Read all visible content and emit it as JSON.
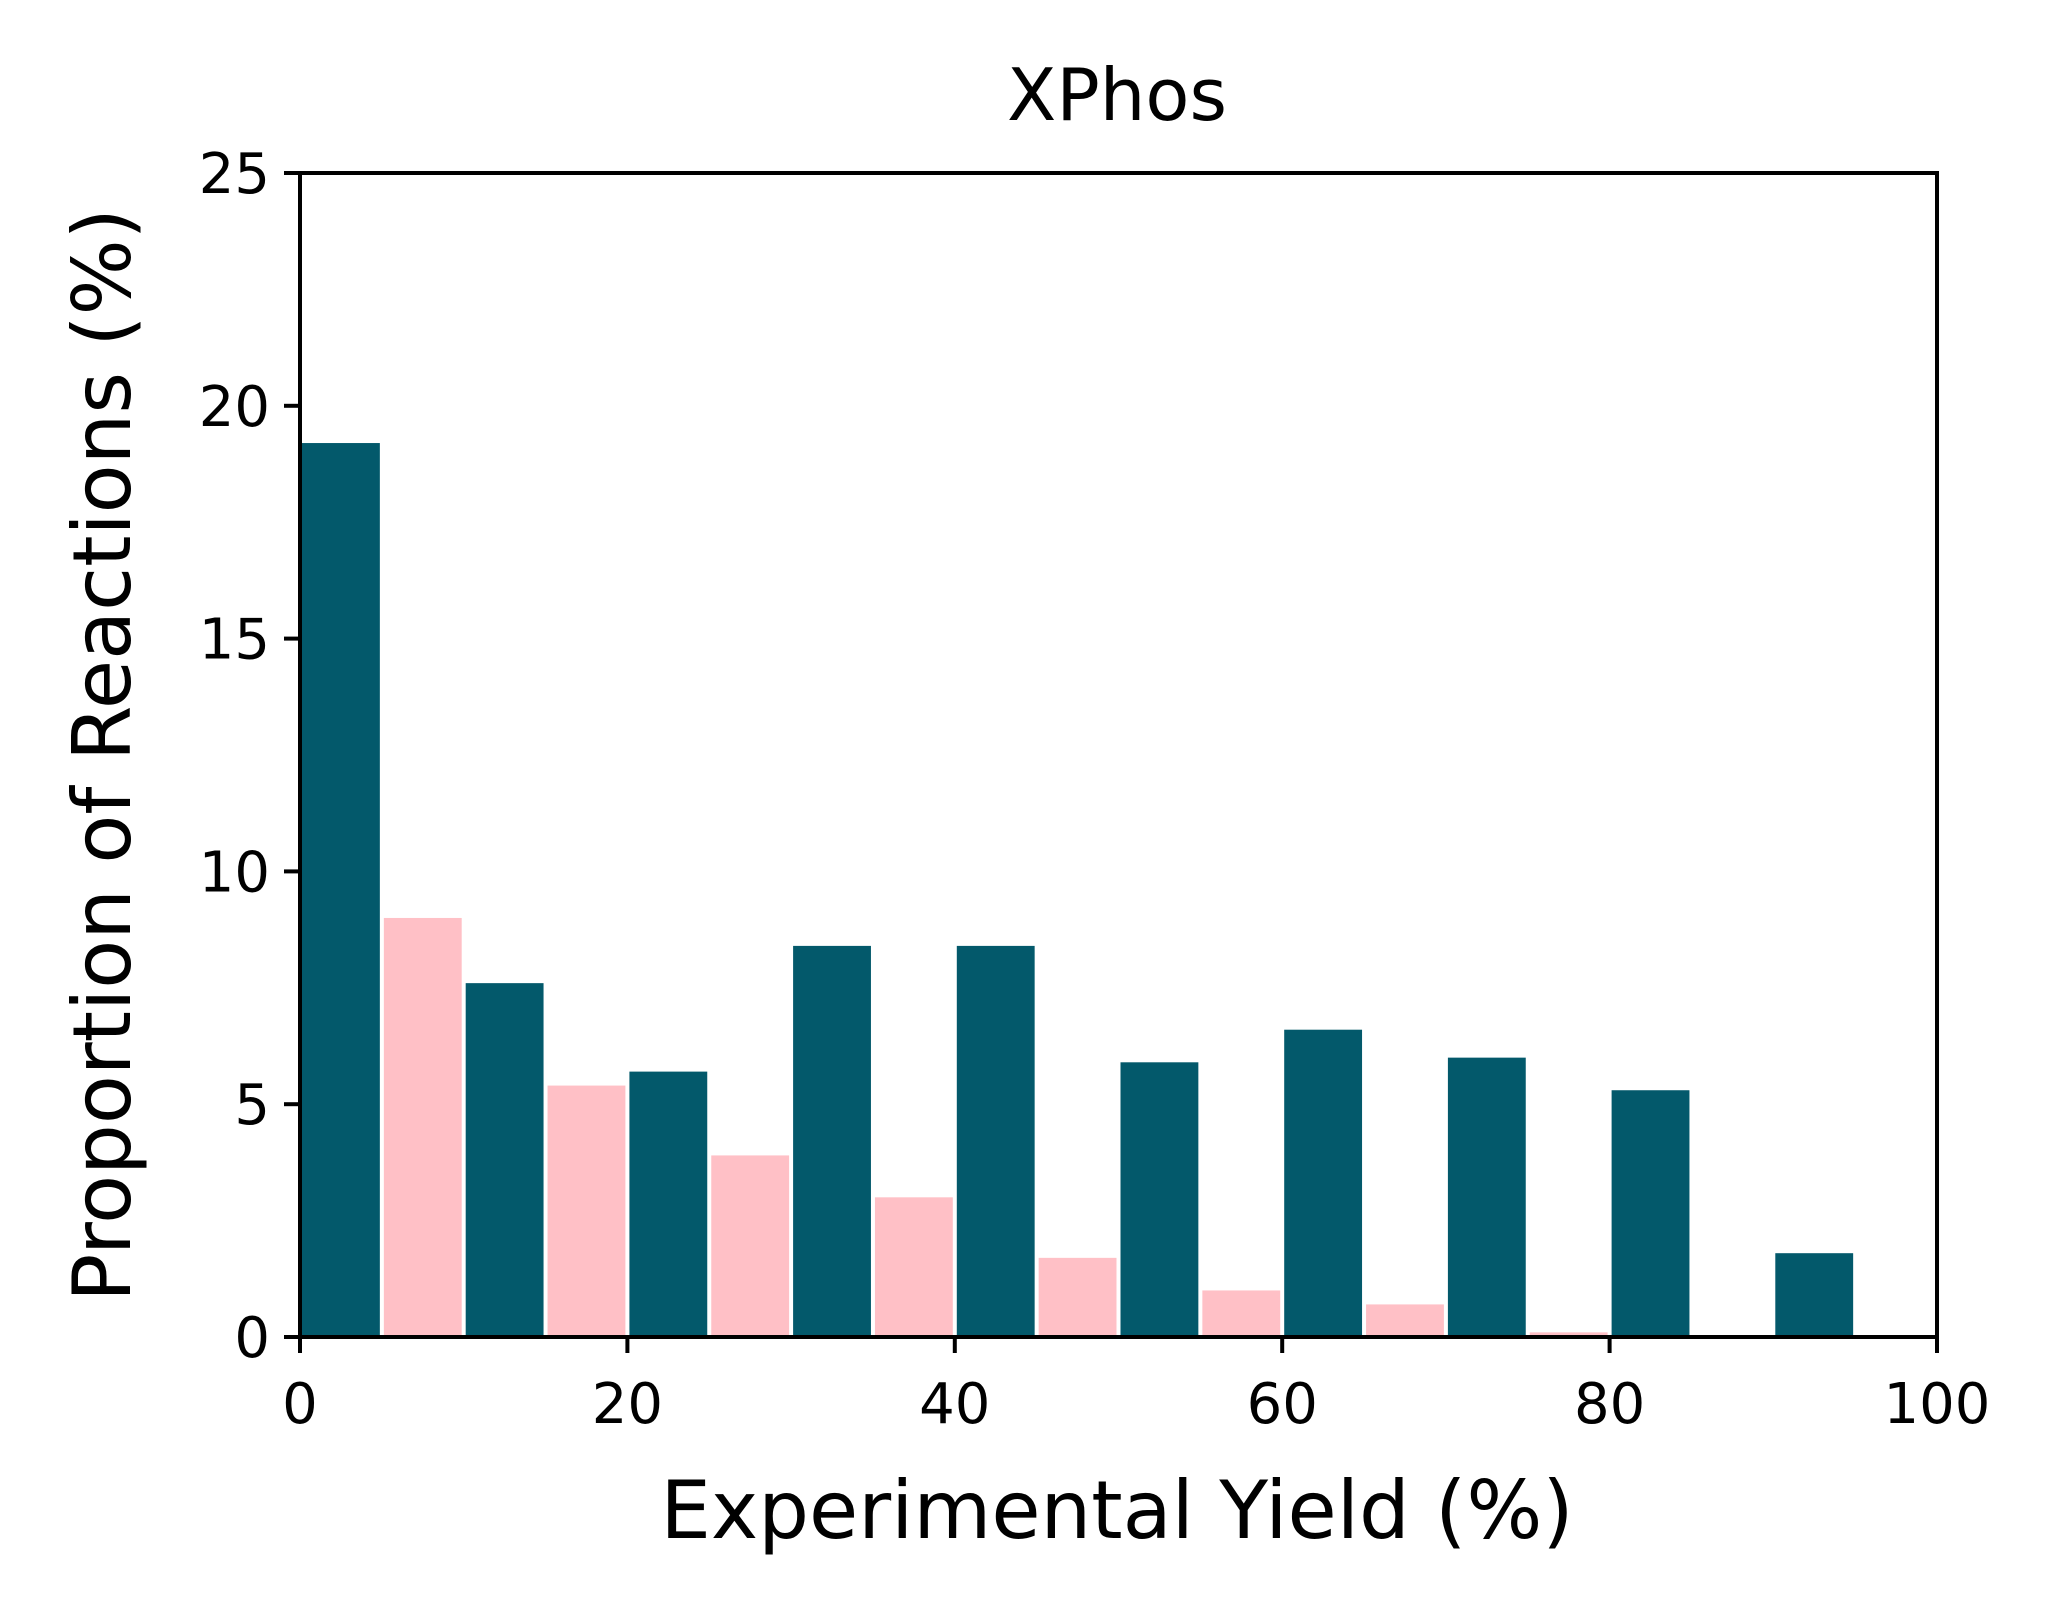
{
  "chart_data": {
    "type": "bar",
    "title": "XPhos",
    "xlabel": "Experimental Yield (%)",
    "ylabel": "Proportion of Reactions (%)",
    "xlim": [
      0,
      100
    ],
    "ylim": [
      0,
      25
    ],
    "xticks": [
      "0",
      "20",
      "40",
      "60",
      "80",
      "100"
    ],
    "yticks": [
      "0",
      "5",
      "10",
      "15",
      "20",
      "25"
    ],
    "bin_edges": [
      0,
      10,
      20,
      30,
      40,
      50,
      60,
      70,
      80,
      90,
      100
    ],
    "grid": false,
    "legend": false,
    "series": [
      {
        "color": "#03596b",
        "offset": "left",
        "values": [
          19.2,
          7.6,
          5.7,
          8.4,
          8.4,
          5.9,
          6.6,
          6.0,
          5.3,
          1.8
        ]
      },
      {
        "color": "#ffc0c6",
        "offset": "right",
        "values": [
          9.0,
          5.4,
          3.9,
          3.0,
          1.7,
          1.0,
          0.7,
          0.1,
          0,
          0
        ]
      }
    ]
  }
}
